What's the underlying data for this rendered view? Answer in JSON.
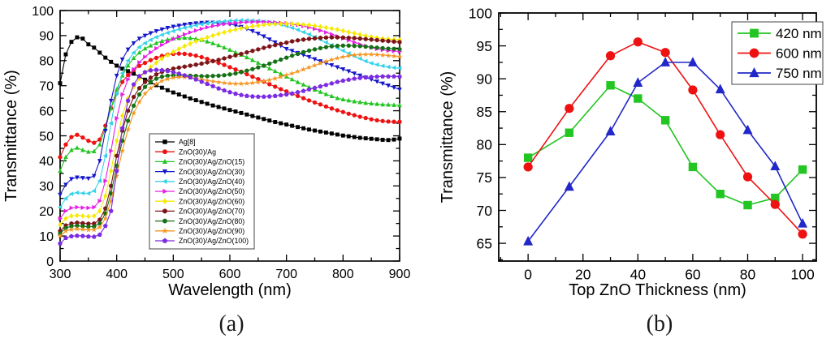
{
  "figure": {
    "background": "#ffffff",
    "axis_color": "#000000"
  },
  "chart_data": [
    {
      "caption": "(a)",
      "type": "line",
      "xlabel": "Wavelength (nm)",
      "ylabel": "Transmittance (%)",
      "xlim": [
        300,
        900
      ],
      "ylim": [
        0,
        100
      ],
      "xticks": [
        300,
        400,
        500,
        600,
        700,
        800,
        900
      ],
      "yticks": [
        0,
        10,
        20,
        30,
        40,
        50,
        60,
        70,
        80,
        90,
        100
      ],
      "xminor_step": 50,
      "yminor_step": 5,
      "grid": false,
      "legend_position": "inside-center-left",
      "x": [
        300,
        310,
        320,
        330,
        340,
        350,
        360,
        370,
        380,
        390,
        400,
        410,
        420,
        430,
        440,
        450,
        460,
        470,
        480,
        490,
        500,
        510,
        520,
        530,
        540,
        550,
        560,
        570,
        580,
        590,
        600,
        610,
        620,
        630,
        640,
        650,
        660,
        670,
        680,
        690,
        700,
        710,
        720,
        730,
        740,
        750,
        760,
        770,
        780,
        790,
        800,
        810,
        820,
        830,
        840,
        850,
        860,
        870,
        880,
        890,
        900
      ],
      "series": [
        {
          "name": "Ag[8]",
          "color": "#000000",
          "marker": "square",
          "values": [
            71,
            82.5,
            87.5,
            89.3,
            88.8,
            86.5,
            85.2,
            83.2,
            81.2,
            79.5,
            78,
            76.8,
            75.8,
            74.8,
            73.6,
            72.4,
            71.3,
            70.2,
            69.2,
            68.2,
            67.3,
            66.5,
            65.7,
            64.9,
            64.2,
            63.5,
            62.8,
            62.1,
            61.5,
            60.9,
            60.3,
            59.7,
            59.1,
            58.5,
            57.9,
            57.3,
            56.7,
            56.1,
            55.5,
            55,
            54.5,
            54,
            53.5,
            53,
            52.5,
            52.1,
            51.7,
            51.3,
            50.9,
            50.5,
            50.1,
            49.8,
            49.5,
            49.2,
            49,
            48.8,
            48.6,
            48.4,
            48.3,
            48.5,
            48.9
          ]
        },
        {
          "name": "ZnO(30)/Ag",
          "color": "#ee1111",
          "marker": "circle",
          "values": [
            41.5,
            46.5,
            49.5,
            50.4,
            49.3,
            48,
            47.2,
            48.5,
            54,
            61,
            67,
            71.5,
            74.3,
            76.3,
            77.9,
            79.1,
            80.2,
            81.1,
            81.9,
            82.4,
            82.7,
            82.8,
            82.7,
            82.4,
            82,
            81.4,
            80.7,
            79.9,
            79.1,
            78.3,
            77.4,
            76.5,
            75.6,
            74.6,
            73.6,
            72.6,
            71.6,
            70.6,
            69.6,
            68.6,
            67.7,
            66.8,
            65.9,
            65,
            64.1,
            63.3,
            62.5,
            61.7,
            60.9,
            60.2,
            59.5,
            58.8,
            58.2,
            57.6,
            57.1,
            56.6,
            56.2,
            55.9,
            55.7,
            55.6,
            55.6
          ]
        },
        {
          "name": "ZnO(30)/Ag/ZnO(15)",
          "color": "#22c522",
          "marker": "triangle-up",
          "values": [
            36,
            41.5,
            44.3,
            45.2,
            44.3,
            43.6,
            43.8,
            46.5,
            53,
            61,
            68.5,
            74,
            78,
            81,
            83.2,
            84.8,
            86,
            87,
            87.8,
            88.4,
            88.8,
            89,
            89.1,
            89,
            88.7,
            88.2,
            87.6,
            86.9,
            86.1,
            85.2,
            84.3,
            83.3,
            82.3,
            81.3,
            80.2,
            79.1,
            78,
            76.9,
            75.8,
            74.7,
            73.6,
            72.5,
            71.4,
            70.4,
            69.4,
            68.4,
            67.5,
            66.6,
            65.8,
            65,
            64.5,
            64.1,
            63.7,
            63.4,
            63.1,
            62.9,
            62.7,
            62.5,
            62.4,
            62.3,
            62.2
          ]
        },
        {
          "name": "ZnO(30)/Ag/ZnO(30)",
          "color": "#1517c9",
          "marker": "triangle-down",
          "values": [
            26.5,
            30.5,
            32.8,
            33.4,
            33.2,
            33,
            34,
            40,
            52,
            64,
            74,
            80.5,
            84.5,
            87,
            88.8,
            90,
            91,
            91.8,
            92.5,
            93.1,
            93.6,
            94,
            94.4,
            94.7,
            94.9,
            95.1,
            95.2,
            95.2,
            95.1,
            94.9,
            94.6,
            94.1,
            93.5,
            92.7,
            91.8,
            90.8,
            89.7,
            88.5,
            87.3,
            86,
            84.7,
            83.9,
            83.1,
            82.3,
            81.5,
            80.6,
            79.8,
            79,
            78.2,
            77.4,
            76.6,
            75.8,
            74.9,
            74.1,
            73.3,
            72.5,
            71.7,
            70.9,
            70.1,
            69.3,
            68.5
          ]
        },
        {
          "name": "ZnO(30)/Ag/ZnO(40)",
          "color": "#35d3e8",
          "marker": "triangle-left",
          "values": [
            21.5,
            25,
            26.8,
            27.3,
            27.1,
            27,
            28,
            32,
            42,
            55,
            67,
            75,
            80,
            83.2,
            85.4,
            87,
            88.3,
            89.4,
            90.3,
            91.1,
            91.8,
            92.5,
            93.1,
            93.6,
            94.1,
            94.5,
            94.9,
            95.2,
            95.5,
            95.7,
            95.9,
            96,
            96.1,
            96.1,
            96,
            95.9,
            95.6,
            95.3,
            94.9,
            94.4,
            93.8,
            93.1,
            92.3,
            91.4,
            90.5,
            89.5,
            88.4,
            87.3,
            86.2,
            85.1,
            84,
            82.9,
            81.8,
            80.8,
            79.8,
            79,
            78.4,
            77.9,
            77.5,
            77.2,
            77
          ]
        },
        {
          "name": "ZnO(30)/Ag/ZnO(50)",
          "color": "#e620e6",
          "marker": "triangle-right",
          "values": [
            17,
            20,
            21.2,
            21.5,
            21.3,
            21.2,
            21.5,
            24,
            32,
            44,
            57,
            66.5,
            72.5,
            76.5,
            79.3,
            81.5,
            83.3,
            84.9,
            86.3,
            87.5,
            88.6,
            89.6,
            90.5,
            91.3,
            92,
            92.7,
            93.3,
            93.8,
            94.2,
            94.6,
            94.9,
            95.1,
            95.3,
            95.4,
            95.5,
            95.5,
            95.5,
            95.4,
            95.3,
            95.1,
            94.9,
            94.6,
            94.2,
            93.8,
            93.3,
            92.7,
            92,
            91.3,
            90.5,
            89.7,
            88.9,
            88.1,
            87.3,
            86.5,
            85.8,
            85.2,
            84.7,
            84.3,
            84,
            83.8,
            83.7
          ]
        },
        {
          "name": "ZnO(30)/Ag/ZnO(60)",
          "color": "#f6ea00",
          "marker": "diamond",
          "values": [
            14.5,
            17,
            18,
            18.2,
            18,
            17.8,
            18,
            20,
            26,
            36,
            48,
            58,
            65,
            69.5,
            72.8,
            75.3,
            77.4,
            79.2,
            80.8,
            82.2,
            83.5,
            84.7,
            85.8,
            86.8,
            87.7,
            88.5,
            89.3,
            90,
            90.7,
            91.3,
            91.9,
            92.4,
            92.9,
            93.3,
            93.7,
            94,
            94.3,
            94.5,
            94.6,
            94.7,
            94.7,
            94.7,
            94.6,
            94.4,
            94.2,
            93.9,
            93.6,
            93.2,
            92.8,
            92.4,
            91.9,
            91.4,
            90.9,
            90.4,
            89.9,
            89.5,
            89.1,
            88.8,
            88.6,
            88.4,
            88.3
          ]
        },
        {
          "name": "ZnO(30)/Ag/ZnO(70)",
          "color": "#7d1518",
          "marker": "hexagon",
          "values": [
            12,
            14.2,
            15,
            15.3,
            15.1,
            14.9,
            15,
            16.5,
            21,
            30,
            42,
            52,
            60,
            65.5,
            69,
            71.5,
            73.2,
            74.5,
            75.5,
            76.2,
            76.8,
            77.2,
            77.6,
            78,
            78.4,
            78.8,
            79.3,
            79.8,
            80.3,
            80.9,
            81.5,
            82.1,
            82.7,
            83.3,
            83.9,
            84.5,
            85.1,
            85.7,
            86.2,
            86.7,
            87.2,
            87.7,
            88.1,
            88.4,
            88.7,
            88.9,
            89.1,
            89.2,
            89.3,
            89.3,
            89.2,
            89.1,
            89,
            88.8,
            88.6,
            88.4,
            88.2,
            88,
            87.8,
            87.6,
            87.4
          ]
        },
        {
          "name": "ZnO(30)/Ag/ZnO(80)",
          "color": "#167016",
          "marker": "circle",
          "values": [
            11,
            13.2,
            13.9,
            14.1,
            13.9,
            13.7,
            13.8,
            15,
            19,
            27,
            38,
            48,
            56,
            62,
            66.5,
            69.5,
            71.5,
            72.8,
            73.6,
            74,
            74.2,
            74.2,
            74.1,
            74,
            73.9,
            73.8,
            73.8,
            73.9,
            74,
            74.2,
            74.5,
            74.9,
            75.4,
            76,
            76.6,
            77.3,
            78,
            78.8,
            79.6,
            80.4,
            81.2,
            82,
            82.7,
            83.4,
            84,
            84.5,
            85,
            85.4,
            85.7,
            85.9,
            86,
            86,
            85.9,
            85.8,
            85.6,
            85.4,
            85.2,
            85,
            84.8,
            84.7,
            84.6
          ]
        },
        {
          "name": "ZnO(30)/Ag/ZnO(90)",
          "color": "#f6941e",
          "marker": "star",
          "values": [
            10,
            12,
            12.6,
            12.8,
            12.6,
            12.4,
            12.5,
            13.5,
            17,
            24,
            34,
            44,
            52.5,
            59,
            63.5,
            66.8,
            69,
            70.7,
            71.9,
            72.7,
            73.2,
            73.4,
            73.4,
            73.2,
            72.9,
            72.5,
            72.1,
            71.7,
            71.4,
            71.1,
            70.9,
            70.8,
            70.8,
            70.9,
            71.1,
            71.4,
            71.8,
            72.3,
            72.9,
            73.5,
            74.2,
            74.9,
            75.7,
            76.5,
            77.3,
            78.1,
            78.9,
            79.7,
            80.4,
            81,
            81.5,
            81.9,
            82.2,
            82.4,
            82.5,
            82.5,
            82.4,
            82.2,
            82,
            81.8,
            81.6
          ]
        },
        {
          "name": "ZnO(30)/Ag/ZnO(100)",
          "color": "#7b2be2",
          "marker": "pentagon",
          "values": [
            7,
            9.2,
            9.9,
            10.1,
            10,
            9.8,
            9.7,
            10.5,
            14,
            20,
            36,
            53,
            64,
            70.5,
            73.8,
            75.4,
            76.1,
            76.3,
            76.2,
            75.9,
            75.4,
            74.8,
            74.1,
            73.3,
            72.5,
            71.6,
            70.7,
            69.8,
            68.9,
            68.1,
            67.4,
            66.8,
            66.3,
            65.9,
            65.7,
            65.6,
            65.6,
            65.7,
            65.9,
            66.2,
            66.5,
            66.9,
            67.4,
            67.9,
            68.5,
            69.1,
            69.7,
            70.3,
            70.9,
            71.5,
            72,
            72.4,
            72.8,
            73.1,
            73.3,
            73.5,
            73.6,
            73.7,
            73.7,
            73.7,
            73.6
          ]
        }
      ]
    },
    {
      "caption": "(b)",
      "type": "line",
      "xlabel": "Top ZnO Thickness (nm)",
      "ylabel": "Transmittance (%)",
      "xlim": [
        -10.7,
        105
      ],
      "ylim": [
        62.3,
        100
      ],
      "xticks": [
        0,
        20,
        40,
        60,
        80,
        100
      ],
      "yticks": [
        65,
        70,
        75,
        80,
        85,
        90,
        95,
        100
      ],
      "xminor_step": 10,
      "yminor_step": 2.5,
      "grid": false,
      "legend_position": "top-right",
      "x": [
        0,
        15,
        30,
        40,
        50,
        60,
        70,
        80,
        90,
        100
      ],
      "series": [
        {
          "name": "420 nm",
          "color": "#22c522",
          "marker": "square",
          "values": [
            78.0,
            81.8,
            89.0,
            87.0,
            83.7,
            76.6,
            72.5,
            70.8,
            71.9,
            76.2
          ]
        },
        {
          "name": "600 nm",
          "color": "#ee1111",
          "marker": "circle",
          "values": [
            76.6,
            85.5,
            93.5,
            95.6,
            94.0,
            88.3,
            81.5,
            75.1,
            70.9,
            66.4
          ]
        },
        {
          "name": "750 nm",
          "color": "#2228c8",
          "marker": "triangle-up",
          "values": [
            65.3,
            73.6,
            82.0,
            89.4,
            92.5,
            92.5,
            88.4,
            82.2,
            76.7,
            68.0
          ]
        }
      ]
    }
  ]
}
